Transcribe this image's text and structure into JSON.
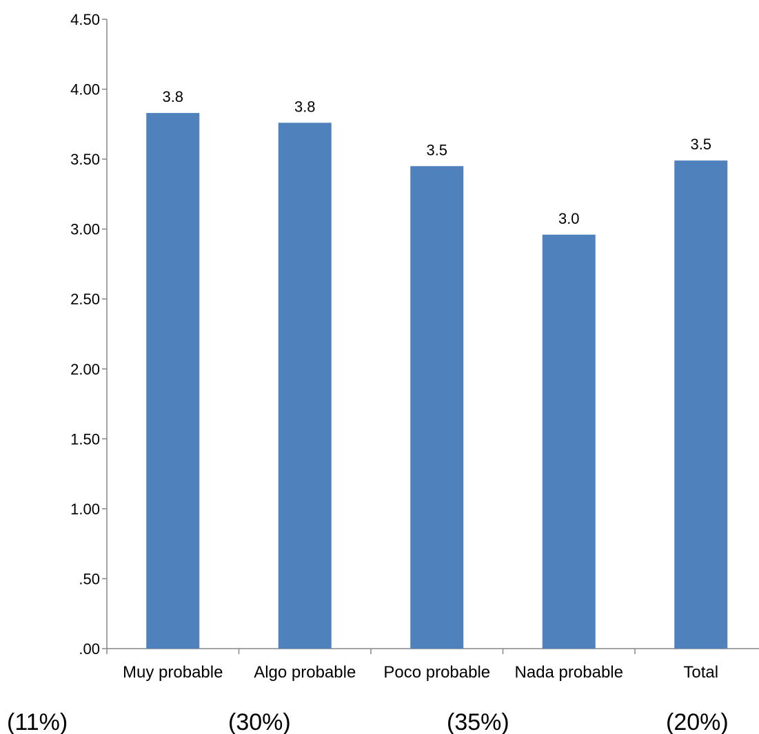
{
  "chart_data": {
    "type": "bar",
    "categories": [
      "Muy probable",
      "Algo probable",
      "Poco probable",
      "Nada probable",
      "Total"
    ],
    "values": [
      3.83,
      3.76,
      3.45,
      2.96,
      3.49
    ],
    "data_labels": [
      "3.8",
      "3.8",
      "3.5",
      "3.0",
      "3.5"
    ],
    "ylim": [
      0,
      4.5
    ],
    "yticks": [
      0,
      0.5,
      1,
      1.5,
      2,
      2.5,
      3,
      3.5,
      4,
      4.5
    ],
    "ytick_labels": [
      ".00",
      ".50",
      "1.00",
      "1.50",
      "2.00",
      "2.50",
      "3.00",
      "3.50",
      "4.00",
      "4.50"
    ],
    "bar_color": "#4f81bd",
    "grid": false,
    "title": "",
    "xlabel": "",
    "ylabel": "",
    "annotations": [
      "(11%)",
      "(30%)",
      "(35%)",
      "(20%)"
    ]
  }
}
